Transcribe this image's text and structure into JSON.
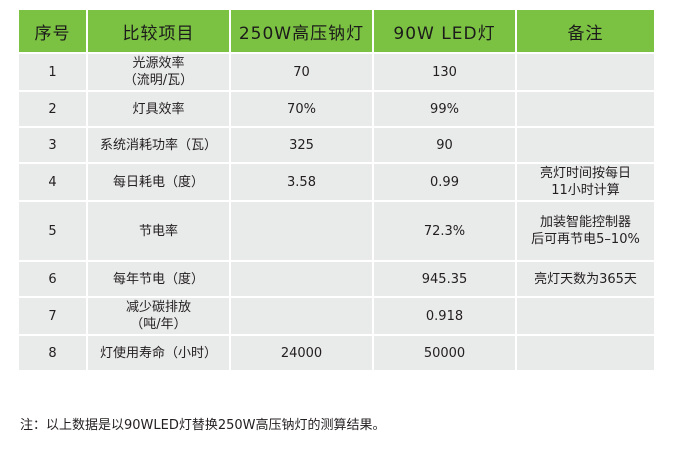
{
  "headers": [
    "序号",
    "比较项目",
    "250W高压钠灯",
    "90W LED灯",
    "备注"
  ],
  "rows": [
    {
      "num": "1",
      "item": "光源效率\n（流明/瓦）",
      "sodium": "70",
      "led": "130",
      "note": ""
    },
    {
      "num": "2",
      "item": "灯具效率",
      "sodium": "70%",
      "led": "99%",
      "note": ""
    },
    {
      "num": "3",
      "item": "系统消耗功率（瓦）",
      "sodium": "325",
      "led": "90",
      "note": ""
    },
    {
      "num": "4",
      "item": "每日耗电（度）",
      "sodium": "3.58",
      "led": "0.99",
      "note": "亮灯时间按每日\n11小时计算"
    },
    {
      "num": "5",
      "item": "节电率",
      "sodium": "",
      "led": "72.3%",
      "note": "加装智能控制器\n后可再节电5–10%"
    },
    {
      "num": "6",
      "item": "每年节电（度）",
      "sodium": "",
      "led": "945.35",
      "note": "亮灯天数为365天"
    },
    {
      "num": "7",
      "item": "减少碳排放\n（吨/年）",
      "sodium": "",
      "led": "0.918",
      "note": ""
    },
    {
      "num": "8",
      "item": "灯使用寿命（小时）",
      "sodium": "24000",
      "led": "50000",
      "note": ""
    }
  ],
  "footnote": "注：以上数据是以90WLED灯替换250W高压钠灯的测算结果。"
}
